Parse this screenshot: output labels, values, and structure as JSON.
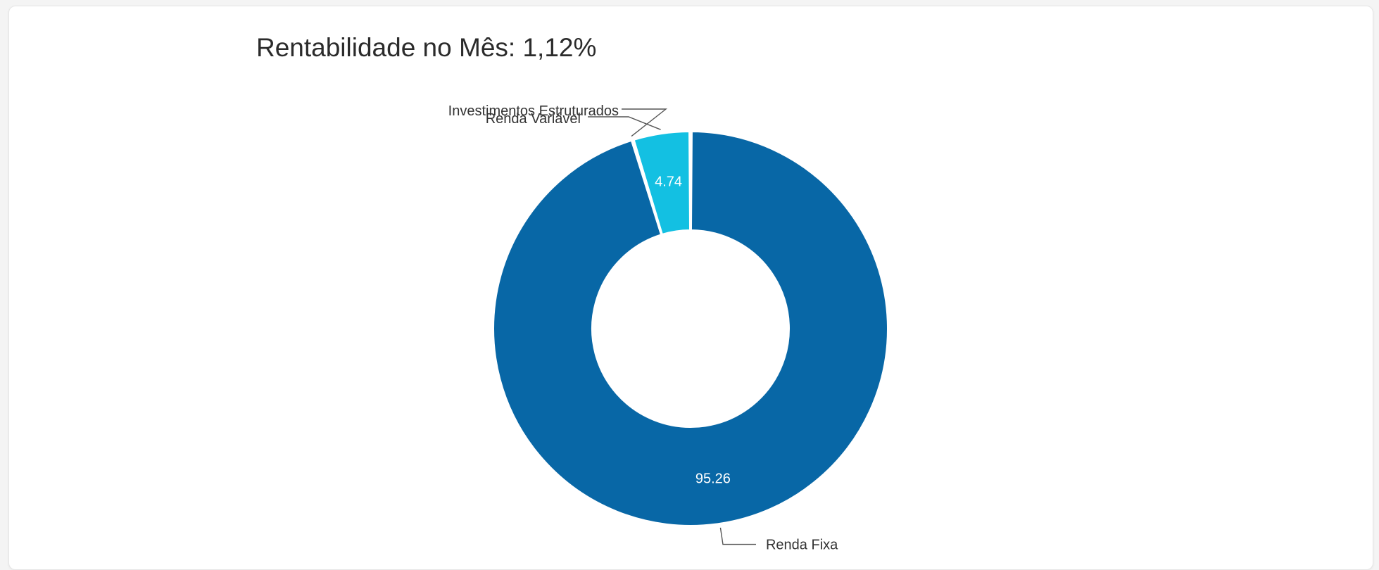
{
  "page": {
    "background": "#f4f4f4",
    "card_background": "#ffffff"
  },
  "chart_data": {
    "type": "pie",
    "variant": "donut",
    "title": "Rentabilidade no Mês: 1,12%",
    "legend": "none",
    "slices": [
      {
        "label": "Renda Fixa",
        "value": 95.26,
        "display_value": "95.26",
        "color": "#0867a6"
      },
      {
        "label": "Investimentos Estruturados",
        "value": 0.0,
        "display_value": "",
        "color": "#0a8fc8"
      },
      {
        "label": "Renda Variável",
        "value": 4.74,
        "display_value": "4.74",
        "color": "#13c0e2"
      }
    ]
  }
}
